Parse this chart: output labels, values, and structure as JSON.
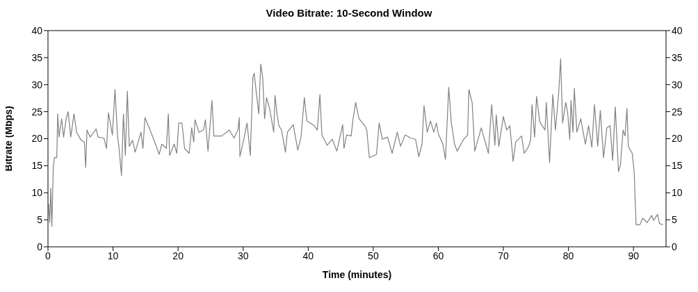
{
  "chart_data": {
    "type": "line",
    "title": "Video Bitrate: 10-Second Window",
    "xlabel": "Time (minutes)",
    "ylabel": "Bitrate (Mbps)",
    "xlim": [
      0,
      95
    ],
    "xticks": [
      0,
      10,
      20,
      30,
      40,
      50,
      60,
      70,
      80,
      90
    ],
    "ylim": [
      0,
      40
    ],
    "yticks": [
      0,
      5,
      10,
      15,
      20,
      25,
      30,
      35,
      40
    ],
    "y2lim": [
      0,
      40
    ],
    "y2ticks": [
      0,
      5,
      10,
      15,
      20,
      25,
      30,
      35,
      40
    ],
    "marker": "none",
    "line_style": "solid",
    "series": [
      {
        "color": "#808080",
        "x": [
          0.1,
          0.27,
          0.43,
          0.6,
          0.82,
          1.0,
          1.35,
          1.5,
          1.7,
          2.1,
          2.4,
          2.8,
          3.1,
          3.5,
          4.0,
          4.4,
          5.1,
          5.6,
          5.8,
          6.0,
          6.5,
          7.4,
          7.7,
          8.6,
          9.0,
          9.3,
          9.9,
          10.3,
          10.7,
          10.9,
          11.3,
          11.6,
          11.9,
          12.2,
          12.5,
          13.0,
          13.4,
          14.3,
          14.6,
          14.9,
          15.7,
          16.4,
          17.1,
          17.5,
          18.2,
          18.5,
          18.7,
          19.4,
          19.8,
          20.1,
          20.6,
          21.0,
          21.7,
          22.1,
          22.4,
          22.6,
          23.2,
          23.9,
          24.2,
          24.6,
          25.0,
          25.2,
          25.5,
          26.7,
          27.9,
          28.6,
          29.2,
          29.4,
          29.5,
          30.1,
          30.6,
          31.0,
          31.1,
          31.5,
          31.7,
          32.0,
          32.4,
          32.7,
          33.0,
          33.3,
          33.6,
          34.1,
          34.7,
          34.9,
          35.2,
          35.5,
          35.9,
          36.5,
          36.8,
          37.7,
          38.4,
          38.9,
          39.4,
          39.8,
          40.9,
          41.4,
          41.8,
          42.1,
          42.9,
          43.7,
          44.4,
          45.3,
          45.5,
          45.9,
          46.6,
          46.9,
          47.3,
          47.8,
          48.7,
          49.0,
          49.4,
          50.5,
          50.9,
          51.4,
          52.2,
          52.9,
          53.7,
          54.2,
          54.9,
          55.8,
          56.5,
          57.0,
          57.5,
          57.8,
          58.3,
          58.8,
          59.3,
          59.7,
          60.0,
          60.7,
          61.1,
          61.6,
          62.0,
          62.5,
          62.9,
          63.9,
          64.5,
          64.7,
          65.2,
          65.6,
          66.6,
          67.7,
          68.2,
          68.7,
          68.9,
          69.3,
          70.0,
          70.5,
          71.0,
          71.5,
          71.9,
          72.8,
          73.2,
          73.9,
          74.2,
          74.4,
          74.8,
          75.1,
          75.6,
          76.4,
          76.6,
          77.1,
          77.6,
          78.0,
          78.5,
          78.8,
          79.1,
          79.6,
          79.9,
          80.2,
          80.4,
          80.7,
          80.9,
          81.3,
          81.9,
          82.6,
          83.1,
          83.6,
          84.0,
          84.5,
          84.9,
          85.4,
          85.9,
          86.4,
          86.8,
          87.2,
          87.7,
          88.0,
          88.4,
          88.7,
          89.0,
          89.2,
          89.8,
          90.1,
          90.4,
          91.0,
          91.4,
          92.1,
          92.8,
          93.1,
          93.7,
          94.0,
          94.5
        ],
        "values": [
          7.9,
          4.5,
          10.9,
          3.8,
          14.7,
          16.5,
          16.5,
          24.6,
          20.3,
          23.7,
          20.3,
          23.7,
          25,
          20.3,
          24.6,
          21.2,
          19.7,
          19.4,
          14.7,
          21.6,
          20.3,
          21.8,
          20.3,
          20.1,
          18.2,
          24.8,
          20.7,
          29.1,
          20.3,
          18.6,
          13.2,
          24.6,
          16.9,
          28.8,
          18.6,
          19.7,
          17.5,
          21.2,
          18.2,
          23.9,
          21.6,
          19.4,
          17.1,
          19,
          18.2,
          24.6,
          16.9,
          19,
          17.3,
          22.9,
          22.9,
          18.2,
          17.3,
          22,
          19.4,
          23.5,
          21.2,
          21.6,
          23.5,
          17.7,
          23.7,
          27.1,
          20.5,
          20.5,
          21.6,
          20.1,
          21.6,
          23.9,
          16.7,
          19.9,
          22.9,
          18.2,
          16.9,
          31.4,
          32.1,
          28.8,
          24.6,
          33.8,
          31.4,
          23.7,
          27.6,
          25.4,
          21.2,
          28,
          24.6,
          22.4,
          21.6,
          17.5,
          21.2,
          22.6,
          17.9,
          20.3,
          27.6,
          23.3,
          22.4,
          21.6,
          28.2,
          20.7,
          18.8,
          19.9,
          17.7,
          22.6,
          18.2,
          20.7,
          20.5,
          23.7,
          26.7,
          23.7,
          22.4,
          21.6,
          16.5,
          17.1,
          22.9,
          19.9,
          20.3,
          17.3,
          21.2,
          18.6,
          20.7,
          20.1,
          19.9,
          16.7,
          19,
          26.1,
          21.2,
          23.3,
          21.2,
          22.9,
          20.9,
          19,
          16.2,
          29.5,
          22.9,
          19,
          17.7,
          19.9,
          20.7,
          29.1,
          26.7,
          17.7,
          22,
          17.3,
          26.3,
          18.8,
          24.4,
          18.6,
          24.1,
          21.6,
          22.4,
          15.8,
          19.4,
          20.5,
          17.3,
          18.6,
          19.9,
          26.3,
          20.3,
          27.8,
          23.1,
          21.6,
          26.7,
          15.6,
          28.2,
          21.6,
          28.4,
          34.8,
          22.9,
          26.7,
          24.6,
          19.9,
          27.1,
          21.2,
          29.3,
          21.2,
          23.7,
          19,
          22.4,
          18.4,
          26.3,
          18.6,
          25.2,
          16.5,
          22,
          22.4,
          16,
          25.9,
          13.9,
          15.2,
          21.6,
          20.5,
          25.6,
          18.6,
          17.3,
          13.9,
          4.1,
          4.1,
          5.3,
          4.5,
          5.8,
          4.9,
          6,
          4.3,
          4.1
        ]
      }
    ]
  }
}
